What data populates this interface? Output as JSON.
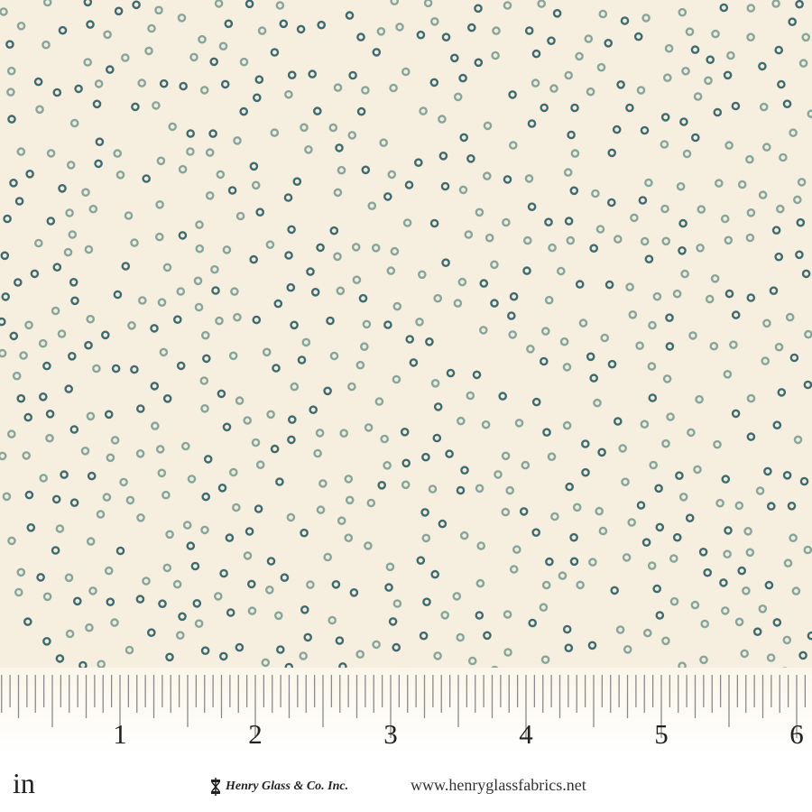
{
  "colors": {
    "background": "#f6efdf",
    "dot_dark": "#3f6a72",
    "dot_light": "#86a59d",
    "dot_center": "#f3ecd6",
    "ruler_tick": "#8a8a8a"
  },
  "ruler": {
    "labels": [
      "1",
      "2",
      "3",
      "4",
      "5",
      "6"
    ],
    "unit": "in",
    "subdivisions_per_inch": 16
  },
  "footer": {
    "brand": "Henry Glass & Co. Inc.",
    "brand_icon": "spool-logo-icon",
    "url": "www.henryglassfabrics.net"
  }
}
